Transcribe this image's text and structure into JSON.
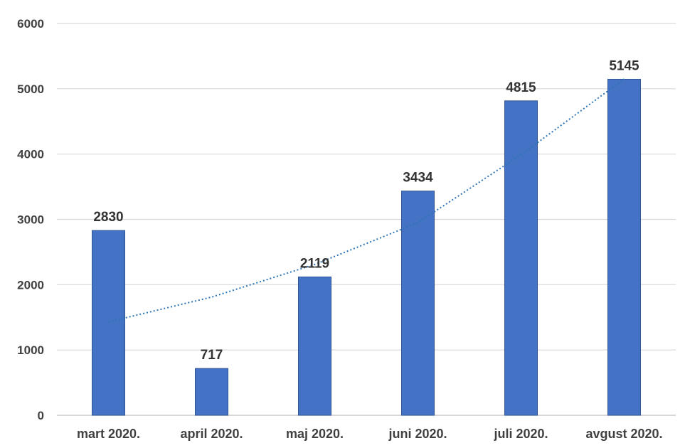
{
  "chart_data": {
    "type": "bar",
    "title": "",
    "xlabel": "",
    "ylabel": "",
    "categories": [
      "mart 2020.",
      "april 2020.",
      "maj 2020.",
      "juni 2020.",
      "juli 2020.",
      "avgust 2020."
    ],
    "series": [
      {
        "values": [
          2830,
          717,
          2119,
          3434,
          4815,
          5145
        ],
        "color": "#4472c4",
        "data_labels": [
          "2830",
          "717",
          "2119",
          "3434",
          "4815",
          "5145"
        ]
      }
    ],
    "trendline": {
      "type": "exponential",
      "style": "dotted",
      "color": "#2e75b6",
      "values": [
        1430,
        1810,
        2310,
        2950,
        3990,
        5150
      ]
    },
    "yticks": [
      0,
      1000,
      2000,
      3000,
      4000,
      5000,
      6000
    ],
    "ytick_labels": [
      "0",
      "1000",
      "2000",
      "3000",
      "4000",
      "5000",
      "6000"
    ],
    "ylim": [
      0,
      6000
    ],
    "grid": true,
    "legend": "none"
  }
}
